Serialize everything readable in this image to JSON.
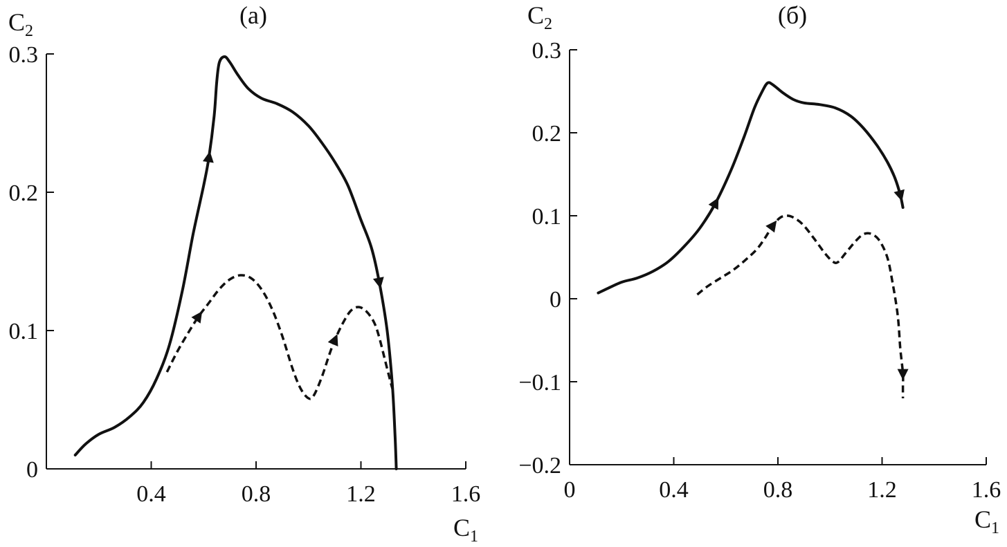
{
  "chart_data": [
    {
      "type": "line",
      "title": "(a)",
      "xlabel": "C",
      "xlabel_sub": "1",
      "ylabel": "C",
      "ylabel_sub": "2",
      "xlim": [
        0,
        1.6
      ],
      "ylim": [
        0,
        0.3
      ],
      "x_ticks": [
        0.4,
        0.8,
        1.2,
        1.6
      ],
      "x_tick_labels": [
        "0.4",
        "0.8",
        "1.2",
        "1.6"
      ],
      "y_ticks": [
        0,
        0.1,
        0.2,
        0.3
      ],
      "y_tick_labels": [
        "0",
        "0.1",
        "0.2",
        "0.3"
      ],
      "grid": false,
      "series": [
        {
          "style": "solid",
          "color": "#111111",
          "x": [
            0.11,
            0.15,
            0.2,
            0.26,
            0.32,
            0.37,
            0.42,
            0.47,
            0.52,
            0.56,
            0.6,
            0.62,
            0.64,
            0.65,
            0.66,
            0.68,
            0.7,
            0.73,
            0.77,
            0.82,
            0.88,
            0.94,
            1.0,
            1.05,
            1.1,
            1.15,
            1.2,
            1.24,
            1.27,
            1.3,
            1.32,
            1.33,
            1.335
          ],
          "y": [
            0.01,
            0.018,
            0.025,
            0.03,
            0.038,
            0.048,
            0.065,
            0.09,
            0.13,
            0.17,
            0.205,
            0.225,
            0.255,
            0.28,
            0.294,
            0.298,
            0.294,
            0.285,
            0.275,
            0.268,
            0.264,
            0.258,
            0.248,
            0.236,
            0.222,
            0.205,
            0.18,
            0.16,
            0.135,
            0.1,
            0.06,
            0.025,
            0.0
          ],
          "arrows": [
            {
              "x": 0.62,
              "direction": "forward"
            },
            {
              "x": 1.26,
              "direction": "forward"
            }
          ]
        },
        {
          "style": "dashed",
          "color": "#111111",
          "x": [
            0.46,
            0.5,
            0.54,
            0.58,
            0.62,
            0.66,
            0.7,
            0.74,
            0.78,
            0.82,
            0.86,
            0.9,
            0.94,
            0.97,
            1.0,
            1.02,
            1.05,
            1.08,
            1.1,
            1.13,
            1.16,
            1.19,
            1.22,
            1.25,
            1.27,
            1.29,
            1.31,
            1.32
          ],
          "y": [
            0.07,
            0.085,
            0.098,
            0.11,
            0.12,
            0.13,
            0.137,
            0.14,
            0.138,
            0.13,
            0.116,
            0.096,
            0.072,
            0.058,
            0.051,
            0.053,
            0.066,
            0.083,
            0.093,
            0.105,
            0.114,
            0.117,
            0.114,
            0.106,
            0.095,
            0.08,
            0.065,
            0.058
          ],
          "arrows": [
            {
              "x": 0.6,
              "direction": "forward"
            },
            {
              "x": 1.1,
              "direction": "forward"
            }
          ]
        }
      ]
    },
    {
      "type": "line",
      "title": "(б)",
      "xlabel": "C",
      "xlabel_sub": "1",
      "ylabel": "C",
      "ylabel_sub": "2",
      "xlim": [
        0,
        1.6
      ],
      "ylim": [
        -0.2,
        0.3
      ],
      "x_ticks": [
        0,
        0.4,
        0.8,
        1.2,
        1.6
      ],
      "x_tick_labels": [
        "0",
        "0.4",
        "0.8",
        "1.2",
        "1.6"
      ],
      "y_ticks": [
        -0.2,
        -0.1,
        0,
        0.1,
        0.2,
        0.3
      ],
      "y_tick_labels": [
        "−0.2",
        "−0.1",
        "0",
        "0.1",
        "0.2",
        "0.3"
      ],
      "grid": false,
      "series": [
        {
          "style": "solid",
          "color": "#111111",
          "x": [
            0.11,
            0.15,
            0.2,
            0.26,
            0.32,
            0.38,
            0.44,
            0.5,
            0.56,
            0.62,
            0.67,
            0.71,
            0.74,
            0.76,
            0.78,
            0.82,
            0.86,
            0.9,
            0.96,
            1.02,
            1.08,
            1.13,
            1.18,
            1.22,
            1.25,
            1.27,
            1.28
          ],
          "y": [
            0.007,
            0.013,
            0.02,
            0.025,
            0.033,
            0.045,
            0.063,
            0.085,
            0.115,
            0.155,
            0.195,
            0.23,
            0.25,
            0.26,
            0.258,
            0.248,
            0.24,
            0.236,
            0.234,
            0.23,
            0.22,
            0.205,
            0.185,
            0.165,
            0.145,
            0.125,
            0.11
          ],
          "arrows": [
            {
              "x": 0.55,
              "direction": "forward"
            },
            {
              "x": 1.27,
              "direction": "forward"
            }
          ]
        },
        {
          "style": "dashed",
          "color": "#111111",
          "x": [
            0.49,
            0.53,
            0.58,
            0.63,
            0.68,
            0.72,
            0.75,
            0.78,
            0.81,
            0.84,
            0.87,
            0.9,
            0.94,
            0.98,
            1.01,
            1.03,
            1.06,
            1.1,
            1.13,
            1.16,
            1.19,
            1.22,
            1.24,
            1.26,
            1.27,
            1.28,
            1.28,
            1.28
          ],
          "y": [
            0.005,
            0.015,
            0.025,
            0.035,
            0.048,
            0.06,
            0.073,
            0.088,
            0.098,
            0.1,
            0.096,
            0.088,
            0.072,
            0.055,
            0.045,
            0.044,
            0.055,
            0.07,
            0.078,
            0.078,
            0.07,
            0.05,
            0.02,
            -0.02,
            -0.06,
            -0.09,
            -0.105,
            -0.12
          ],
          "arrows": [
            {
              "x": 0.77,
              "direction": "forward"
            },
            {
              "x": 1.28,
              "direction": "down"
            }
          ]
        }
      ]
    }
  ]
}
